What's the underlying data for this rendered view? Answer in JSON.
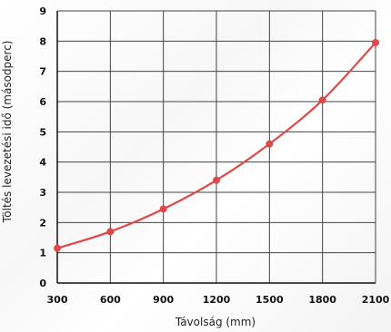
{
  "chart_data": {
    "type": "line",
    "xlabel": "Távolság (mm)",
    "ylabel": "Töltés levezetési idő (másodperc)",
    "x_ticks": [
      "300",
      "600",
      "900",
      "1200",
      "1500",
      "1800",
      "2100"
    ],
    "y_ticks": [
      "0",
      "1",
      "2",
      "3",
      "4",
      "5",
      "6",
      "7",
      "8",
      "9"
    ],
    "xlim": [
      300,
      2100
    ],
    "ylim": [
      0,
      9
    ],
    "grid": true,
    "series": [
      {
        "x": [
          300,
          600,
          900,
          1200,
          1500,
          1800,
          2100
        ],
        "y": [
          1.15,
          1.7,
          2.45,
          3.4,
          4.6,
          6.05,
          7.95
        ],
        "color": "#e04848"
      }
    ]
  }
}
